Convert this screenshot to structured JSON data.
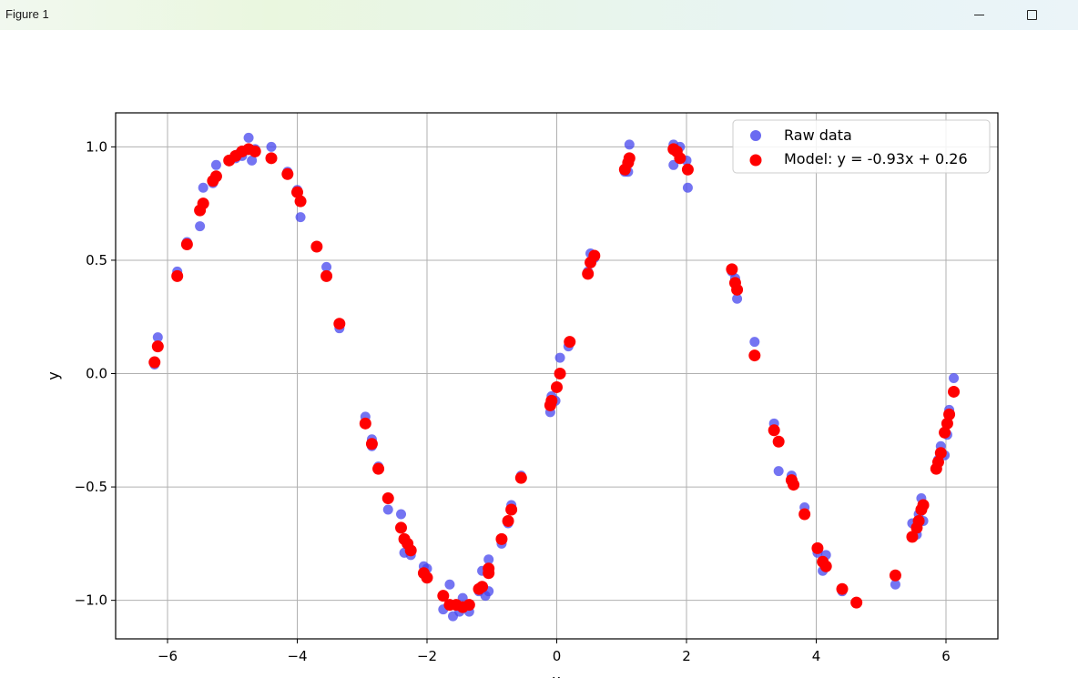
{
  "window": {
    "title": "Figure 1",
    "controls": [
      "minimize-icon",
      "maximize-icon"
    ]
  },
  "chart_data": {
    "type": "scatter",
    "xlabel": "x",
    "ylabel": "y",
    "xlim": [
      -6.8,
      6.8
    ],
    "ylim": [
      -1.17,
      1.15
    ],
    "xticks": [
      -6,
      -4,
      -2,
      0,
      2,
      4,
      6
    ],
    "xtick_labels": [
      "−6",
      "−4",
      "−2",
      "0",
      "2",
      "4",
      "6"
    ],
    "yticks": [
      1.0,
      0.5,
      0.0,
      -0.5,
      -1.0
    ],
    "ytick_labels": [
      "1.0",
      "0.5",
      "0.0",
      "−0.5",
      "−1.0"
    ],
    "grid": true,
    "legend_position": "top-right",
    "series": [
      {
        "name": "Raw data",
        "color": "#4545ee",
        "marker": "circle",
        "points": [
          [
            -6.2,
            0.04
          ],
          [
            -6.15,
            0.16
          ],
          [
            -5.85,
            0.45
          ],
          [
            -5.7,
            0.58
          ],
          [
            -5.5,
            0.65
          ],
          [
            -5.45,
            0.82
          ],
          [
            -5.3,
            0.84
          ],
          [
            -5.25,
            0.92
          ],
          [
            -5.05,
            0.94
          ],
          [
            -4.95,
            0.95
          ],
          [
            -4.9,
            0.97
          ],
          [
            -4.85,
            0.96
          ],
          [
            -4.75,
            1.04
          ],
          [
            -4.7,
            0.94
          ],
          [
            -4.65,
            0.99
          ],
          [
            -4.4,
            1.0
          ],
          [
            -4.15,
            0.89
          ],
          [
            -4.0,
            0.81
          ],
          [
            -3.95,
            0.69
          ],
          [
            -3.7,
            0.56
          ],
          [
            -3.55,
            0.47
          ],
          [
            -3.35,
            0.2
          ],
          [
            -2.95,
            -0.19
          ],
          [
            -2.85,
            -0.29
          ],
          [
            -2.85,
            -0.32
          ],
          [
            -2.75,
            -0.41
          ],
          [
            -2.6,
            -0.6
          ],
          [
            -2.4,
            -0.62
          ],
          [
            -2.35,
            -0.79
          ],
          [
            -2.25,
            -0.8
          ],
          [
            -2.05,
            -0.85
          ],
          [
            -2.0,
            -0.86
          ],
          [
            -1.75,
            -1.04
          ],
          [
            -1.65,
            -0.93
          ],
          [
            -1.6,
            -1.07
          ],
          [
            -1.5,
            -1.05
          ],
          [
            -1.45,
            -0.99
          ],
          [
            -1.35,
            -1.05
          ],
          [
            -1.2,
            -0.96
          ],
          [
            -1.15,
            -0.87
          ],
          [
            -1.1,
            -0.98
          ],
          [
            -1.05,
            -0.96
          ],
          [
            -1.05,
            -0.82
          ],
          [
            -0.85,
            -0.75
          ],
          [
            -0.75,
            -0.66
          ],
          [
            -0.7,
            -0.58
          ],
          [
            -0.55,
            -0.45
          ],
          [
            -0.1,
            -0.17
          ],
          [
            -0.08,
            -0.1
          ],
          [
            -0.02,
            -0.12
          ],
          [
            0.05,
            0.07
          ],
          [
            0.18,
            0.12
          ],
          [
            0.48,
            0.45
          ],
          [
            0.52,
            0.53
          ],
          [
            0.58,
            0.51
          ],
          [
            1.05,
            0.89
          ],
          [
            1.1,
            0.89
          ],
          [
            1.12,
            1.01
          ],
          [
            1.8,
            1.01
          ],
          [
            1.8,
            0.92
          ],
          [
            1.9,
            1.0
          ],
          [
            2.0,
            0.94
          ],
          [
            2.02,
            0.82
          ],
          [
            2.7,
            0.45
          ],
          [
            2.75,
            0.42
          ],
          [
            2.78,
            0.33
          ],
          [
            3.05,
            0.14
          ],
          [
            3.35,
            -0.22
          ],
          [
            3.42,
            -0.43
          ],
          [
            3.62,
            -0.45
          ],
          [
            3.82,
            -0.59
          ],
          [
            4.02,
            -0.79
          ],
          [
            4.1,
            -0.87
          ],
          [
            4.15,
            -0.8
          ],
          [
            4.4,
            -0.96
          ],
          [
            4.62,
            -1.01
          ],
          [
            5.22,
            -0.93
          ],
          [
            5.48,
            -0.66
          ],
          [
            5.55,
            -0.71
          ],
          [
            5.58,
            -0.62
          ],
          [
            5.62,
            -0.55
          ],
          [
            5.65,
            -0.65
          ],
          [
            5.85,
            -0.42
          ],
          [
            5.88,
            -0.38
          ],
          [
            5.92,
            -0.32
          ],
          [
            5.98,
            -0.36
          ],
          [
            6.02,
            -0.27
          ],
          [
            6.05,
            -0.16
          ],
          [
            6.12,
            -0.02
          ]
        ]
      },
      {
        "name": "Model: y = -0.93x + 0.26",
        "color": "#ff0000",
        "marker": "circle",
        "points": [
          [
            -6.2,
            0.05
          ],
          [
            -6.15,
            0.12
          ],
          [
            -5.85,
            0.43
          ],
          [
            -5.7,
            0.57
          ],
          [
            -5.5,
            0.72
          ],
          [
            -5.45,
            0.75
          ],
          [
            -5.3,
            0.85
          ],
          [
            -5.25,
            0.87
          ],
          [
            -5.05,
            0.94
          ],
          [
            -4.95,
            0.96
          ],
          [
            -4.85,
            0.98
          ],
          [
            -4.75,
            0.99
          ],
          [
            -4.65,
            0.98
          ],
          [
            -4.4,
            0.95
          ],
          [
            -4.15,
            0.88
          ],
          [
            -4.0,
            0.8
          ],
          [
            -3.95,
            0.76
          ],
          [
            -3.7,
            0.56
          ],
          [
            -3.55,
            0.43
          ],
          [
            -3.35,
            0.22
          ],
          [
            -2.95,
            -0.22
          ],
          [
            -2.85,
            -0.31
          ],
          [
            -2.75,
            -0.42
          ],
          [
            -2.6,
            -0.55
          ],
          [
            -2.4,
            -0.68
          ],
          [
            -2.35,
            -0.73
          ],
          [
            -2.3,
            -0.75
          ],
          [
            -2.25,
            -0.78
          ],
          [
            -2.05,
            -0.88
          ],
          [
            -2.0,
            -0.9
          ],
          [
            -1.75,
            -0.98
          ],
          [
            -1.65,
            -1.02
          ],
          [
            -1.55,
            -1.02
          ],
          [
            -1.45,
            -1.03
          ],
          [
            -1.35,
            -1.02
          ],
          [
            -1.2,
            -0.95
          ],
          [
            -1.15,
            -0.94
          ],
          [
            -1.05,
            -0.88
          ],
          [
            -1.05,
            -0.86
          ],
          [
            -0.85,
            -0.73
          ],
          [
            -0.75,
            -0.65
          ],
          [
            -0.7,
            -0.6
          ],
          [
            -0.55,
            -0.46
          ],
          [
            -0.1,
            -0.14
          ],
          [
            -0.08,
            -0.12
          ],
          [
            0.0,
            -0.06
          ],
          [
            0.05,
            0.0
          ],
          [
            0.2,
            0.14
          ],
          [
            0.48,
            0.44
          ],
          [
            0.52,
            0.49
          ],
          [
            0.58,
            0.52
          ],
          [
            1.05,
            0.9
          ],
          [
            1.1,
            0.93
          ],
          [
            1.12,
            0.95
          ],
          [
            1.8,
            0.99
          ],
          [
            1.85,
            0.98
          ],
          [
            1.9,
            0.95
          ],
          [
            2.02,
            0.9
          ],
          [
            2.7,
            0.46
          ],
          [
            2.75,
            0.4
          ],
          [
            2.78,
            0.37
          ],
          [
            3.05,
            0.08
          ],
          [
            3.35,
            -0.25
          ],
          [
            3.42,
            -0.3
          ],
          [
            3.62,
            -0.47
          ],
          [
            3.65,
            -0.49
          ],
          [
            3.82,
            -0.62
          ],
          [
            4.02,
            -0.77
          ],
          [
            4.1,
            -0.83
          ],
          [
            4.15,
            -0.85
          ],
          [
            4.4,
            -0.95
          ],
          [
            4.62,
            -1.01
          ],
          [
            5.22,
            -0.89
          ],
          [
            5.48,
            -0.72
          ],
          [
            5.55,
            -0.68
          ],
          [
            5.58,
            -0.65
          ],
          [
            5.62,
            -0.6
          ],
          [
            5.65,
            -0.58
          ],
          [
            5.85,
            -0.42
          ],
          [
            5.88,
            -0.39
          ],
          [
            5.92,
            -0.35
          ],
          [
            5.98,
            -0.26
          ],
          [
            6.02,
            -0.22
          ],
          [
            6.05,
            -0.18
          ],
          [
            6.12,
            -0.08
          ]
        ]
      }
    ]
  }
}
